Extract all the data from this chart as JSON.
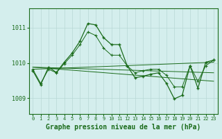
{
  "bg_color": "#d4eeed",
  "grid_color": "#b8d8d6",
  "line_color": "#1a6b1a",
  "marker": "+",
  "xlabel": "Graphe pression niveau de la mer (hPa)",
  "xlabel_fontsize": 7,
  "ytick_fontsize": 6,
  "xtick_fontsize": 5,
  "yticks": [
    1009,
    1010,
    1011
  ],
  "xlim": [
    -0.5,
    23.5
  ],
  "ylim": [
    1008.55,
    1011.55
  ],
  "series": {
    "main": {
      "x": [
        0,
        1,
        2,
        3,
        4,
        5,
        6,
        7,
        8,
        9,
        10,
        11,
        12,
        13,
        14,
        15,
        16,
        17,
        18,
        19,
        20,
        21,
        22,
        23
      ],
      "y": [
        1009.78,
        1009.38,
        1009.88,
        1009.73,
        1010.02,
        1010.28,
        1010.62,
        1011.12,
        1011.08,
        1010.72,
        1010.52,
        1010.52,
        1009.92,
        1009.58,
        1009.62,
        1009.68,
        1009.72,
        1009.42,
        1008.98,
        1009.08,
        1009.92,
        1009.28,
        1010.02,
        1010.08
      ]
    },
    "line2": {
      "x": [
        0,
        1,
        2,
        3,
        4,
        5,
        6,
        7,
        8,
        9,
        10,
        11,
        12,
        13,
        14,
        15,
        16,
        17,
        18,
        19,
        20,
        21,
        22,
        23
      ],
      "y": [
        1009.82,
        1009.42,
        1009.82,
        1009.72,
        1009.98,
        1010.22,
        1010.52,
        1010.88,
        1010.78,
        1010.42,
        1010.22,
        1010.22,
        1009.92,
        1009.72,
        1009.78,
        1009.82,
        1009.82,
        1009.65,
        1009.32,
        1009.32,
        1009.92,
        1009.48,
        1009.92,
        1010.08
      ]
    },
    "trend1": {
      "x": [
        0,
        23
      ],
      "y": [
        1009.88,
        1009.48
      ]
    },
    "trend2": {
      "x": [
        0,
        23
      ],
      "y": [
        1009.88,
        1009.72
      ]
    },
    "trend3": {
      "x": [
        0,
        23
      ],
      "y": [
        1009.82,
        1010.02
      ]
    }
  }
}
